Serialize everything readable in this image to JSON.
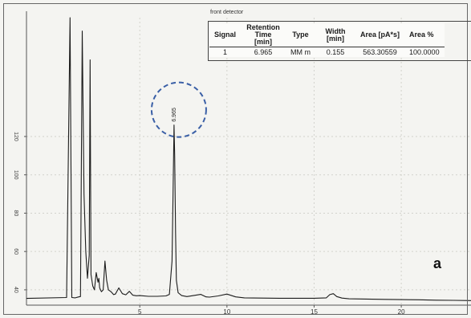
{
  "detector_label": "front detector",
  "panel_label": "a",
  "results_table": {
    "headers": [
      "Signal",
      "Retention Time [min]",
      "Type",
      "Width [min]",
      "Area [pA*s]",
      "Area %"
    ],
    "rows": [
      [
        "1",
        "6.965",
        "MM m",
        "0.155",
        "563.30559",
        "100.0000"
      ]
    ]
  },
  "peak_annotation": "6.965",
  "colors": {
    "trace": "#1c1c1c",
    "highlight_circle": "#3a5fa6",
    "background": "#f4f4f1",
    "grid": "#d2d2cc"
  },
  "chart_data": {
    "type": "line",
    "xlabel": "",
    "ylabel": "",
    "title": "",
    "xlim": [
      -1.5,
      24
    ],
    "ylim": [
      32,
      182
    ],
    "x_ticks": [
      5,
      10,
      15,
      20
    ],
    "y_ticks": [
      40,
      60,
      80,
      100,
      120
    ],
    "grid": true,
    "series": [
      {
        "x": [
          -1.5,
          0.8,
          1.0,
          1.1,
          1.3,
          1.5,
          1.6,
          1.7,
          1.8,
          1.9,
          2.0,
          2.1,
          2.15,
          2.2,
          2.3,
          2.4,
          2.5,
          2.6,
          2.65,
          2.7,
          2.8,
          2.9,
          3.0,
          3.1,
          3.2,
          3.35,
          3.5,
          3.6,
          3.8,
          4.0,
          4.2,
          4.4,
          4.6,
          4.8,
          5.0,
          5.5,
          6.0,
          6.5,
          6.7,
          6.85,
          6.9,
          6.965,
          7.0,
          7.05,
          7.1,
          7.2,
          7.4,
          7.7,
          8.0,
          8.5,
          8.8,
          9.0,
          9.5,
          10.0,
          10.5,
          11.0,
          12.0,
          13.0,
          14.0,
          15.0,
          15.7,
          15.9,
          16.1,
          16.3,
          16.6,
          17.0,
          18.0,
          19.0,
          20.0,
          21.0,
          22.0,
          23.0,
          24.0
        ],
        "y": [
          35.5,
          36.0,
          182.0,
          36.0,
          35.8,
          36.3,
          36.5,
          175.0,
          90.0,
          60.0,
          46.0,
          58.0,
          160.0,
          48.0,
          42.0,
          40.0,
          49.0,
          44.0,
          46.0,
          41.0,
          39.0,
          40.0,
          55.0,
          45.0,
          40.0,
          39.0,
          37.5,
          37.8,
          41.0,
          38.0,
          37.4,
          39.2,
          37.2,
          36.9,
          37.0,
          36.6,
          36.6,
          36.8,
          37.6,
          55.0,
          85.0,
          126.0,
          110.0,
          70.0,
          45.0,
          38.5,
          37.0,
          36.5,
          36.9,
          37.6,
          36.3,
          36.2,
          36.8,
          37.8,
          36.3,
          35.8,
          35.7,
          35.6,
          35.6,
          35.6,
          35.8,
          37.5,
          38.0,
          36.5,
          35.7,
          35.3,
          35.2,
          35.0,
          34.9,
          34.8,
          34.6,
          34.5,
          34.4
        ]
      }
    ]
  }
}
